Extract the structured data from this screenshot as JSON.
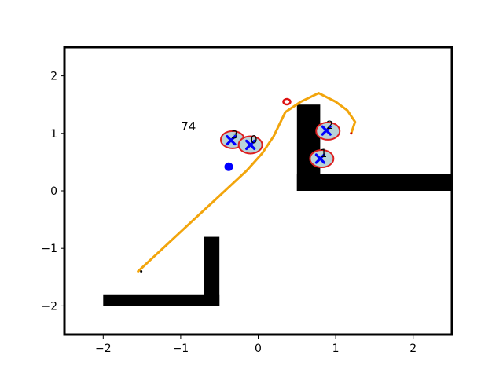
{
  "chart_data": {
    "type": "scatter",
    "title": "",
    "xlabel": "",
    "ylabel": "",
    "xlim": [
      -2.5,
      2.5
    ],
    "ylim": [
      -2.5,
      2.5
    ],
    "grid": false,
    "x_ticks": [
      -2,
      -1,
      0,
      1,
      2
    ],
    "y_ticks": [
      -2,
      -1,
      0,
      1,
      2
    ],
    "x_tick_labels": [
      "−2",
      "−1",
      "0",
      "1",
      "2"
    ],
    "y_tick_labels": [
      "−2",
      "−1",
      "0",
      "1",
      "2"
    ],
    "annotation": {
      "text": "74",
      "x": -0.9,
      "y": 1.05
    },
    "obstacles": [
      {
        "x0": 0.5,
        "y0": 0.0,
        "x1": 0.8,
        "y1": 1.5
      },
      {
        "x0": 0.5,
        "y0": 0.0,
        "x1": 2.5,
        "y1": 0.3
      },
      {
        "x0": -2.0,
        "y0": -2.0,
        "x1": -0.5,
        "y1": -1.8
      },
      {
        "x0": -0.7,
        "y0": -2.0,
        "x1": -0.5,
        "y1": -0.8
      }
    ],
    "trajectory": {
      "color": "#f2a50c",
      "x": [
        -1.55,
        -1.35,
        -1.15,
        -0.95,
        -0.75,
        -0.55,
        -0.35,
        -0.15,
        0.05,
        0.2,
        0.35,
        0.55,
        0.78,
        1.0,
        1.15,
        1.25,
        1.2
      ],
      "y": [
        -1.4,
        -1.15,
        -0.9,
        -0.65,
        -0.4,
        -0.15,
        0.1,
        0.35,
        0.65,
        0.95,
        1.37,
        1.55,
        1.7,
        1.55,
        1.4,
        1.2,
        1.0
      ]
    },
    "robot": {
      "x": -0.38,
      "y": 0.42,
      "color": "#0000ff"
    },
    "goal": {
      "x": 0.37,
      "y": 1.55,
      "color": "#dd1111"
    },
    "landmarks": [
      {
        "label": "3",
        "x": -0.35,
        "y": 0.88,
        "ex": -0.33,
        "ey": 0.89
      },
      {
        "label": "0",
        "x": -0.1,
        "y": 0.8,
        "ex": -0.1,
        "ey": 0.8
      },
      {
        "label": "2",
        "x": 0.88,
        "y": 1.05,
        "ex": 0.9,
        "ey": 1.04
      },
      {
        "label": "1",
        "x": 0.8,
        "y": 0.56,
        "ex": 0.82,
        "ey": 0.56
      }
    ]
  }
}
